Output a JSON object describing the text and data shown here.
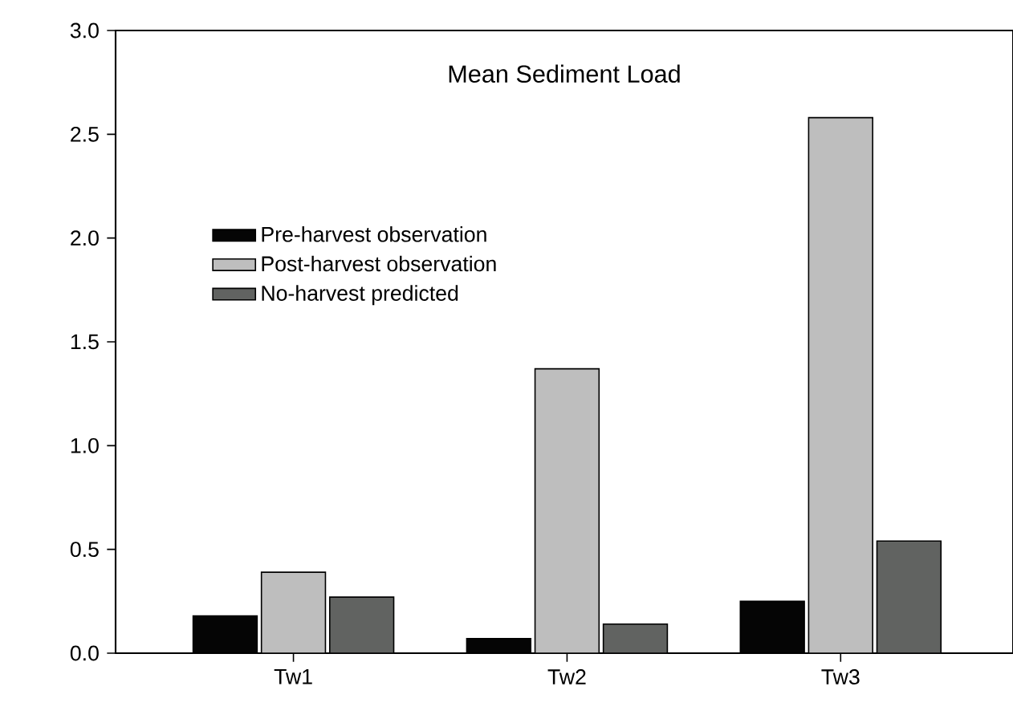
{
  "chart_data": {
    "type": "bar",
    "title": "Mean Sediment Load",
    "categories": [
      "Tw1",
      "Tw2",
      "Tw3"
    ],
    "series": [
      {
        "name": "Pre-harvest observation",
        "color": "#050505",
        "values": [
          0.18,
          0.07,
          0.25
        ]
      },
      {
        "name": "Post-harvest observation",
        "color": "#bebebe",
        "values": [
          0.39,
          1.37,
          2.58
        ]
      },
      {
        "name": "No-harvest predicted",
        "color": "#616361",
        "values": [
          0.27,
          0.14,
          0.54
        ]
      }
    ],
    "ylim": [
      0,
      3.0
    ],
    "yticks": [
      {
        "value": 0,
        "label": "0.0"
      },
      {
        "value": 0.5,
        "label": "0.5"
      },
      {
        "value": 1.0,
        "label": "1.0"
      },
      {
        "value": 1.5,
        "label": "1.5"
      },
      {
        "value": 2.0,
        "label": "2.0"
      },
      {
        "value": 2.5,
        "label": "2.5"
      },
      {
        "value": 3.0,
        "label": "3.0"
      }
    ],
    "grid": false,
    "legend": "top left"
  }
}
